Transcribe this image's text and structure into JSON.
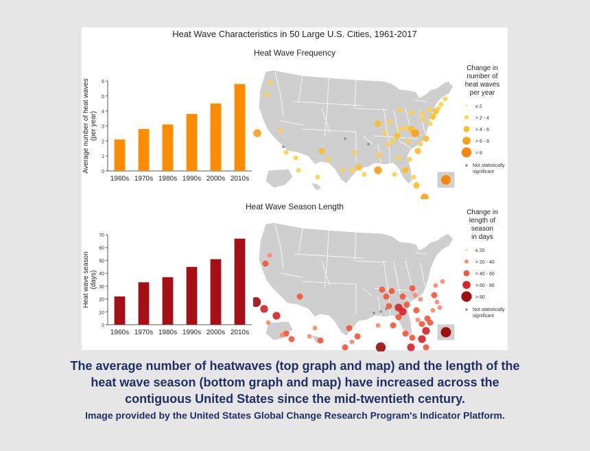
{
  "title": "Heat Wave Characteristics in 50 Large U.S. Cities, 1961-2017",
  "colors": {
    "frequency_bar": "#ff8c00",
    "season_bar": "#a50f15",
    "map_land": "#cfcfcf",
    "caption": "#1f2f66"
  },
  "frequency": {
    "title": "Heat Wave Frequency",
    "legend": {
      "title": [
        "Change in",
        "number of",
        "heat waves",
        "per year"
      ],
      "items": [
        "≤ 2",
        "> 2 - 4",
        "> 4 - 6",
        "> 6 - 8",
        "> 8"
      ],
      "not_significant": [
        "Not statistically",
        "significant"
      ],
      "colors": [
        "#fde98a",
        "#fcd34d",
        "#fbbf24",
        "#f9a21b",
        "#f7880d"
      ]
    }
  },
  "season": {
    "title": "Heat Wave Season Length",
    "legend": {
      "title": [
        "Change in",
        "length of",
        "season",
        "in days"
      ],
      "items": [
        "≤ 20",
        "> 20 - 40",
        "> 40 - 60",
        "> 60 - 80",
        "> 80"
      ],
      "not_significant": [
        "Not statistically",
        "significant"
      ],
      "colors": [
        "#fdd0a2",
        "#fb8a6a",
        "#f2583d",
        "#d7262b",
        "#9e0f12"
      ]
    }
  },
  "chart_data": [
    {
      "type": "bar",
      "categories": [
        "1960s",
        "1970s",
        "1980s",
        "1990s",
        "2000s",
        "2010s"
      ],
      "values": [
        2.1,
        2.8,
        3.1,
        3.8,
        4.5,
        5.8
      ],
      "title": "",
      "xlabel": "",
      "ylabel": [
        "Average number of heat waves",
        "(per year)"
      ],
      "ylim": [
        0,
        6
      ],
      "yticks": [
        0,
        1,
        2,
        3,
        4,
        5,
        6
      ],
      "grid": false
    },
    {
      "type": "bar",
      "categories": [
        "1960s",
        "1970s",
        "1980s",
        "1990s",
        "2000s",
        "2010s"
      ],
      "values": [
        22,
        33,
        37,
        45,
        51,
        67
      ],
      "title": "",
      "xlabel": "",
      "ylabel": [
        "Heat wave season",
        "(days)"
      ],
      "ylim": [
        0,
        70
      ],
      "yticks": [
        0,
        10,
        20,
        30,
        40,
        50,
        60,
        70
      ],
      "grid": false
    }
  ],
  "caption": {
    "lines": [
      "The average number of heatwaves (top graph and map) and the length of the",
      "heat wave season (bottom graph and map) have increased across the",
      "contiguous United States since the mid-twentieth century."
    ],
    "credit": "Image provided by the United States Global Change Research Program's Indicator Platform."
  }
}
